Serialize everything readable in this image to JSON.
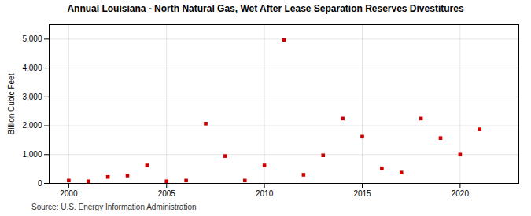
{
  "chart_data": {
    "type": "scatter",
    "title": "Annual Louisiana - North Natural Gas, Wet After Lease Separation Reserves Divestitures",
    "ylabel": "Billion Cubic Feet",
    "caption": "Source: U.S. Energy Information Administration",
    "x": [
      2000,
      2001,
      2002,
      2003,
      2004,
      2005,
      2006,
      2007,
      2008,
      2009,
      2010,
      2011,
      2012,
      2013,
      2014,
      2015,
      2016,
      2017,
      2018,
      2019,
      2020,
      2021
    ],
    "values": [
      100,
      75,
      225,
      275,
      625,
      75,
      100,
      2075,
      950,
      100,
      625,
      4975,
      300,
      975,
      2250,
      1625,
      525,
      375,
      2250,
      1575,
      1000,
      1875
    ],
    "color": "#cc0000",
    "marker": "square",
    "xlim": [
      1999,
      2023
    ],
    "xticks": [
      2000,
      2005,
      2010,
      2015,
      2020
    ],
    "ylim": [
      0,
      5500
    ],
    "yticks": [
      0,
      {
        "value": 1000,
        "label": "1,000"
      },
      {
        "value": 2000,
        "label": "2,000"
      },
      {
        "value": 3000,
        "label": "3,000"
      },
      {
        "value": 4000,
        "label": "4,000"
      },
      {
        "value": 5000,
        "label": "5,000"
      }
    ],
    "grid": true
  }
}
